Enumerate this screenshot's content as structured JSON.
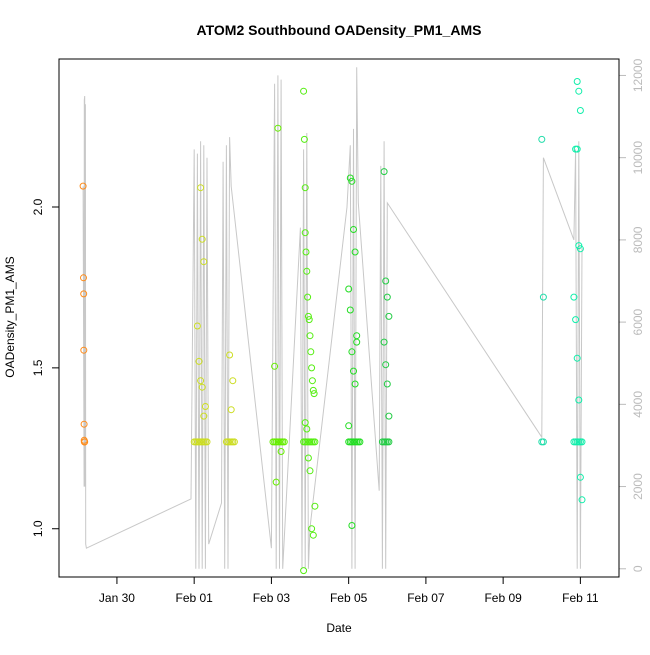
{
  "chart_data": {
    "type": "scatter",
    "title": "ATOM2 Southbound OADensity_PM1_AMS",
    "xlabel": "Date",
    "ylabel": "OADensity_PM1_AMS",
    "xlim": [
      "2017-01-28T12:00",
      "2017-02-12T00:00"
    ],
    "ylim": [
      0.85,
      2.46
    ],
    "x_ticks": [
      {
        "date": "2017-01-30T00:00",
        "label": "Jan 30"
      },
      {
        "date": "2017-02-01T00:00",
        "label": "Feb 01"
      },
      {
        "date": "2017-02-03T00:00",
        "label": "Feb 03"
      },
      {
        "date": "2017-02-05T00:00",
        "label": "Feb 05"
      },
      {
        "date": "2017-02-07T00:00",
        "label": "Feb 07"
      },
      {
        "date": "2017-02-09T00:00",
        "label": "Feb 09"
      },
      {
        "date": "2017-02-11T00:00",
        "label": "Feb 11"
      }
    ],
    "y_ticks": [
      {
        "value": 1.0,
        "label": "1.0"
      },
      {
        "value": 1.5,
        "label": "1.5"
      },
      {
        "value": 2.0,
        "label": "2.0"
      }
    ],
    "y2lim": [
      -200,
      12400
    ],
    "y2_ticks": [
      {
        "value": 0,
        "label": "0"
      },
      {
        "value": 2000,
        "label": "2000"
      },
      {
        "value": 4000,
        "label": "4000"
      },
      {
        "value": 6000,
        "label": "6000"
      },
      {
        "value": 8000,
        "label": "8000"
      },
      {
        "value": 10000,
        "label": "10000"
      },
      {
        "value": 12000,
        "label": "12000"
      }
    ],
    "grid": false,
    "legend": "none",
    "marker": "open-circle",
    "line_color": "#c8c8c8",
    "axis2_color": "#bbbbbb",
    "altitude_line": {
      "x": [
        "2017-01-29T03:00",
        "2017-01-29T03:36",
        "2017-01-29T03:45",
        "2017-01-29T04:00",
        "2017-01-29T04:12",
        "2017-01-29T04:24",
        "2017-01-29T04:36",
        "2017-01-29T05:00",
        "2017-01-31T22:00",
        "2017-02-01T00:00",
        "2017-02-01T01:00",
        "2017-02-01T02:00",
        "2017-02-01T03:00",
        "2017-02-01T04:00",
        "2017-02-01T05:00",
        "2017-02-01T06:00",
        "2017-02-01T07:00",
        "2017-02-01T08:00",
        "2017-02-01T09:00",
        "2017-02-01T17:00",
        "2017-02-01T18:00",
        "2017-02-01T19:00",
        "2017-02-01T20:00",
        "2017-02-01T21:00",
        "2017-02-01T22:00",
        "2017-02-01T23:00",
        "2017-02-03T00:00",
        "2017-02-03T02:00",
        "2017-02-03T03:00",
        "2017-02-03T04:00",
        "2017-02-03T05:00",
        "2017-02-03T06:00",
        "2017-02-03T07:00",
        "2017-02-03T18:00",
        "2017-02-03T19:00",
        "2017-02-03T20:00",
        "2017-02-03T21:00",
        "2017-02-03T22:00",
        "2017-02-03T23:00",
        "2017-02-04T00:00",
        "2017-02-04T23:00",
        "2017-02-05T01:00",
        "2017-02-05T02:00",
        "2017-02-05T03:00",
        "2017-02-05T04:00",
        "2017-02-05T05:00",
        "2017-02-05T06:00",
        "2017-02-05T19:00",
        "2017-02-05T20:00",
        "2017-02-05T21:00",
        "2017-02-05T22:00",
        "2017-02-05T23:00",
        "2017-02-06T00:00",
        "2017-02-10T00:00",
        "2017-02-10T01:00",
        "2017-02-10T20:00",
        "2017-02-10T21:00",
        "2017-02-10T22:00",
        "2017-02-10T23:00",
        "2017-02-11T00:00",
        "2017-02-11T01:00"
      ],
      "y": [
        9300,
        2000,
        11400,
        11500,
        2000,
        11300,
        600,
        500,
        1700,
        10200,
        0,
        10100,
        0,
        10400,
        0,
        10300,
        0,
        10000,
        600,
        1600,
        9900,
        0,
        10300,
        0,
        10500,
        9300,
        500,
        11800,
        0,
        12000,
        0,
        11900,
        0,
        8300,
        0,
        10200,
        0,
        10600,
        0,
        1000,
        8800,
        10300,
        0,
        10700,
        0,
        12200,
        8900,
        1900,
        9800,
        0,
        10400,
        0,
        8900,
        3200,
        10000,
        8000,
        10200,
        0,
        10400,
        0,
        7800
      ]
    },
    "series": [
      {
        "color": "#ff8c1a",
        "x": [
          "2017-01-29T03:00",
          "2017-01-29T03:15",
          "2017-01-29T03:20",
          "2017-01-29T03:25",
          "2017-01-29T03:35",
          "2017-01-29T03:40",
          "2017-01-29T03:45",
          "2017-01-29T03:50",
          "2017-01-29T04:00"
        ],
        "y": [
          2.065,
          1.78,
          1.73,
          1.555,
          1.325,
          1.275,
          1.27,
          1.27,
          1.27
        ]
      },
      {
        "color": "#ccdd22",
        "x": [
          "2017-02-01T00:00",
          "2017-02-01T01:00",
          "2017-02-01T02:00",
          "2017-02-01T03:00",
          "2017-02-01T04:00",
          "2017-02-01T05:00",
          "2017-02-01T06:00",
          "2017-02-01T07:00",
          "2017-02-01T08:00",
          "2017-02-01T02:00",
          "2017-02-01T03:00",
          "2017-02-01T04:00",
          "2017-02-01T05:00",
          "2017-02-01T06:00",
          "2017-02-01T07:00",
          "2017-02-01T04:00",
          "2017-02-01T05:00",
          "2017-02-01T06:00"
        ],
        "y": [
          1.27,
          1.27,
          1.27,
          1.27,
          1.27,
          1.27,
          1.27,
          1.27,
          1.27,
          1.63,
          1.52,
          1.46,
          1.44,
          1.35,
          1.38,
          2.06,
          1.9,
          1.83
        ]
      },
      {
        "color": "#ccdd22",
        "x": [
          "2017-02-01T20:00",
          "2017-02-01T21:00",
          "2017-02-01T22:00",
          "2017-02-01T23:00",
          "2017-02-02T00:00",
          "2017-02-02T01:00",
          "2017-02-01T22:00",
          "2017-02-01T23:00",
          "2017-02-02T00:00"
        ],
        "y": [
          1.27,
          1.27,
          1.27,
          1.27,
          1.27,
          1.27,
          1.54,
          1.37,
          1.46
        ]
      },
      {
        "color": "#66ee00",
        "x": [
          "2017-02-03T01:00",
          "2017-02-03T02:00",
          "2017-02-03T03:00",
          "2017-02-03T04:00",
          "2017-02-03T05:00",
          "2017-02-03T06:00",
          "2017-02-03T07:00",
          "2017-02-03T08:00",
          "2017-02-03T02:00",
          "2017-02-03T03:00",
          "2017-02-03T04:00",
          "2017-02-03T06:00"
        ],
        "y": [
          1.27,
          1.27,
          1.27,
          1.27,
          1.27,
          1.27,
          1.27,
          1.27,
          1.505,
          1.145,
          2.245,
          1.24
        ]
      },
      {
        "color": "#55ee11",
        "x": [
          "2017-02-03T20:00",
          "2017-02-03T21:00",
          "2017-02-03T22:00",
          "2017-02-03T23:00",
          "2017-02-04T00:00",
          "2017-02-04T01:00",
          "2017-02-04T02:00",
          "2017-02-04T03:00",
          "2017-02-03T20:00",
          "2017-02-03T20:30",
          "2017-02-03T21:00",
          "2017-02-03T21:30",
          "2017-02-03T22:00",
          "2017-02-03T22:30",
          "2017-02-03T23:00",
          "2017-02-03T23:30",
          "2017-02-04T00:00",
          "2017-02-04T00:30",
          "2017-02-04T01:00",
          "2017-02-04T01:30",
          "2017-02-04T02:00",
          "2017-02-04T02:30",
          "2017-02-03T21:00",
          "2017-02-03T22:00",
          "2017-02-03T23:00",
          "2017-02-04T00:00",
          "2017-02-04T01:00",
          "2017-02-04T02:00",
          "2017-02-04T03:00",
          "2017-02-03T20:00",
          "2017-02-03T21:00"
        ],
        "y": [
          1.27,
          1.27,
          1.27,
          1.27,
          1.27,
          1.27,
          1.27,
          1.27,
          2.36,
          2.21,
          2.06,
          1.86,
          1.8,
          1.72,
          1.66,
          1.65,
          1.6,
          1.55,
          1.5,
          1.46,
          1.43,
          1.42,
          1.33,
          1.31,
          1.22,
          1.18,
          1.0,
          0.98,
          1.07,
          0.87,
          1.92
        ]
      },
      {
        "color": "#22dd22",
        "x": [
          "2017-02-05T00:00",
          "2017-02-05T01:00",
          "2017-02-05T02:00",
          "2017-02-05T03:00",
          "2017-02-05T04:00",
          "2017-02-05T05:00",
          "2017-02-05T06:00",
          "2017-02-05T07:00",
          "2017-02-05T00:00",
          "2017-02-05T01:00",
          "2017-02-05T02:00",
          "2017-02-05T03:00",
          "2017-02-05T04:00",
          "2017-02-05T05:00",
          "2017-02-05T01:00",
          "2017-02-05T02:00",
          "2017-02-05T03:00",
          "2017-02-05T04:00",
          "2017-02-05T05:00",
          "2017-02-05T00:00",
          "2017-02-05T02:00"
        ],
        "y": [
          1.27,
          1.27,
          1.27,
          1.27,
          1.27,
          1.27,
          1.27,
          1.27,
          1.745,
          1.68,
          1.55,
          1.49,
          1.45,
          1.6,
          2.09,
          2.08,
          1.93,
          1.86,
          1.58,
          1.32,
          1.01
        ]
      },
      {
        "color": "#22cc44",
        "x": [
          "2017-02-05T21:00",
          "2017-02-05T22:00",
          "2017-02-05T23:00",
          "2017-02-06T00:00",
          "2017-02-06T01:00",
          "2017-02-05T22:00",
          "2017-02-05T23:00",
          "2017-02-06T00:00",
          "2017-02-06T01:00",
          "2017-02-05T22:00",
          "2017-02-05T23:00",
          "2017-02-06T00:00",
          "2017-02-06T01:00"
        ],
        "y": [
          1.27,
          1.27,
          1.27,
          1.27,
          1.27,
          2.11,
          1.77,
          1.72,
          1.66,
          1.58,
          1.51,
          1.45,
          1.35
        ]
      },
      {
        "color": "#22ddaa",
        "x": [
          "2017-02-10T00:00",
          "2017-02-10T01:00",
          "2017-02-10T00:00",
          "2017-02-10T01:00"
        ],
        "y": [
          1.27,
          1.27,
          2.21,
          1.72
        ]
      },
      {
        "color": "#11eeaa",
        "x": [
          "2017-02-10T20:00",
          "2017-02-10T21:00",
          "2017-02-10T22:00",
          "2017-02-10T23:00",
          "2017-02-11T00:00",
          "2017-02-11T01:00",
          "2017-02-10T22:00",
          "2017-02-10T23:00",
          "2017-02-11T00:00",
          "2017-02-10T21:00",
          "2017-02-10T22:00",
          "2017-02-10T23:00",
          "2017-02-11T00:00",
          "2017-02-10T20:00",
          "2017-02-10T21:00",
          "2017-02-10T22:00",
          "2017-02-10T23:00",
          "2017-02-11T00:00",
          "2017-02-11T01:00"
        ],
        "y": [
          1.27,
          1.27,
          1.27,
          1.27,
          1.27,
          1.27,
          2.39,
          2.36,
          2.3,
          2.18,
          2.18,
          1.88,
          1.87,
          1.72,
          1.65,
          1.53,
          1.4,
          1.16,
          1.09
        ]
      }
    ]
  }
}
